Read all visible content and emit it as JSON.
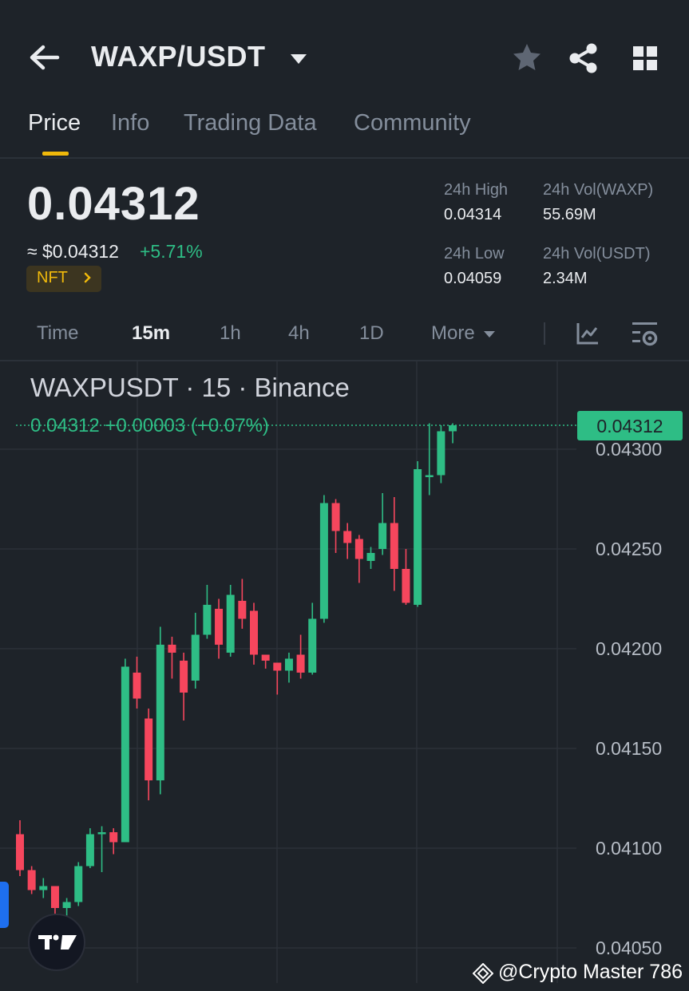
{
  "header": {
    "pair": "WAXP/USDT",
    "icons": [
      "back-arrow-icon",
      "caret-down-icon",
      "star-icon",
      "share-icon",
      "grid-icon"
    ]
  },
  "tabs": [
    {
      "label": "Price",
      "active": true
    },
    {
      "label": "Info",
      "active": false
    },
    {
      "label": "Trading Data",
      "active": false
    },
    {
      "label": "Community",
      "active": false
    }
  ],
  "ticker": {
    "last_price": "0.04312",
    "usd_price": "≈ $0.04312",
    "change_pct": "+5.71%",
    "nft_label": "NFT",
    "stats": {
      "high_label": "24h High",
      "high_value": "0.04314",
      "vol_base_label": "24h Vol(WAXP)",
      "vol_base_value": "55.69M",
      "low_label": "24h Low",
      "low_value": "0.04059",
      "vol_quote_label": "24h Vol(USDT)",
      "vol_quote_value": "2.34M"
    }
  },
  "intervals": {
    "items": [
      "Time",
      "15m",
      "1h",
      "4h",
      "1D",
      "More"
    ],
    "selected": "15m"
  },
  "chart": {
    "title": "WAXPUSDT · 15 · Binance",
    "change_text": "0.04312  +0.00003 (+0.07%)",
    "current_price_tag": "0.04312",
    "y_ticks": [
      "0.04300",
      "0.04250",
      "0.04200",
      "0.04150",
      "0.04100",
      "0.04050"
    ]
  },
  "chart_data": {
    "type": "candlestick",
    "symbol": "WAXPUSDT",
    "interval": "15",
    "exchange": "Binance",
    "ylim": [
      0.0403,
      0.0432
    ],
    "y_ticks": [
      0.043,
      0.0425,
      0.042,
      0.0415,
      0.041,
      0.0405
    ],
    "candles": [
      {
        "o": 0.04107,
        "h": 0.04114,
        "l": 0.04086,
        "c": 0.04089
      },
      {
        "o": 0.04089,
        "h": 0.04091,
        "l": 0.04077,
        "c": 0.04079
      },
      {
        "o": 0.04079,
        "h": 0.04085,
        "l": 0.04075,
        "c": 0.04081
      },
      {
        "o": 0.04081,
        "h": 0.04081,
        "l": 0.04067,
        "c": 0.0407
      },
      {
        "o": 0.0407,
        "h": 0.04075,
        "l": 0.04066,
        "c": 0.04073
      },
      {
        "o": 0.04073,
        "h": 0.04093,
        "l": 0.04071,
        "c": 0.04091
      },
      {
        "o": 0.04091,
        "h": 0.0411,
        "l": 0.0409,
        "c": 0.04107
      },
      {
        "o": 0.04107,
        "h": 0.04111,
        "l": 0.04088,
        "c": 0.04108
      },
      {
        "o": 0.04108,
        "h": 0.0411,
        "l": 0.04097,
        "c": 0.04103
      },
      {
        "o": 0.04103,
        "h": 0.04195,
        "l": 0.04103,
        "c": 0.04191
      },
      {
        "o": 0.04188,
        "h": 0.04196,
        "l": 0.0417,
        "c": 0.04175
      },
      {
        "o": 0.04165,
        "h": 0.0417,
        "l": 0.04124,
        "c": 0.04134
      },
      {
        "o": 0.04134,
        "h": 0.04211,
        "l": 0.04127,
        "c": 0.04202
      },
      {
        "o": 0.04202,
        "h": 0.04206,
        "l": 0.04185,
        "c": 0.04198
      },
      {
        "o": 0.04194,
        "h": 0.04198,
        "l": 0.04164,
        "c": 0.04178
      },
      {
        "o": 0.04184,
        "h": 0.04218,
        "l": 0.0418,
        "c": 0.04207
      },
      {
        "o": 0.04207,
        "h": 0.04232,
        "l": 0.04205,
        "c": 0.04222
      },
      {
        "o": 0.0422,
        "h": 0.04225,
        "l": 0.04195,
        "c": 0.04202
      },
      {
        "o": 0.04198,
        "h": 0.04232,
        "l": 0.04196,
        "c": 0.04227
      },
      {
        "o": 0.04224,
        "h": 0.04235,
        "l": 0.0421,
        "c": 0.04215
      },
      {
        "o": 0.04219,
        "h": 0.04223,
        "l": 0.04192,
        "c": 0.04197
      },
      {
        "o": 0.04197,
        "h": 0.04197,
        "l": 0.0419,
        "c": 0.04194
      },
      {
        "o": 0.04193,
        "h": 0.04193,
        "l": 0.04177,
        "c": 0.04189
      },
      {
        "o": 0.04189,
        "h": 0.04198,
        "l": 0.04183,
        "c": 0.04195
      },
      {
        "o": 0.04197,
        "h": 0.04207,
        "l": 0.04185,
        "c": 0.04188
      },
      {
        "o": 0.04188,
        "h": 0.04223,
        "l": 0.04187,
        "c": 0.04215
      },
      {
        "o": 0.04215,
        "h": 0.04277,
        "l": 0.04213,
        "c": 0.04273
      },
      {
        "o": 0.04273,
        "h": 0.04275,
        "l": 0.04248,
        "c": 0.04259
      },
      {
        "o": 0.04259,
        "h": 0.04263,
        "l": 0.04245,
        "c": 0.04253
      },
      {
        "o": 0.04255,
        "h": 0.04257,
        "l": 0.04233,
        "c": 0.04245
      },
      {
        "o": 0.04244,
        "h": 0.04251,
        "l": 0.0424,
        "c": 0.04248
      },
      {
        "o": 0.0425,
        "h": 0.04278,
        "l": 0.04247,
        "c": 0.04263
      },
      {
        "o": 0.04263,
        "h": 0.04276,
        "l": 0.04229,
        "c": 0.0424
      },
      {
        "o": 0.0424,
        "h": 0.0425,
        "l": 0.04222,
        "c": 0.04223
      },
      {
        "o": 0.04222,
        "h": 0.04294,
        "l": 0.04221,
        "c": 0.0429
      },
      {
        "o": 0.04286,
        "h": 0.04313,
        "l": 0.04277,
        "c": 0.04287
      },
      {
        "o": 0.04287,
        "h": 0.04312,
        "l": 0.04283,
        "c": 0.04309
      },
      {
        "o": 0.04309,
        "h": 0.04313,
        "l": 0.04303,
        "c": 0.04312
      }
    ]
  },
  "overlay": {
    "watermark": "@Crypto Master 786"
  },
  "colors": {
    "background": "#1e2329",
    "up": "#2ebd85",
    "down": "#f6465d",
    "accent": "#f0b90b",
    "text_muted": "#848e9c"
  }
}
